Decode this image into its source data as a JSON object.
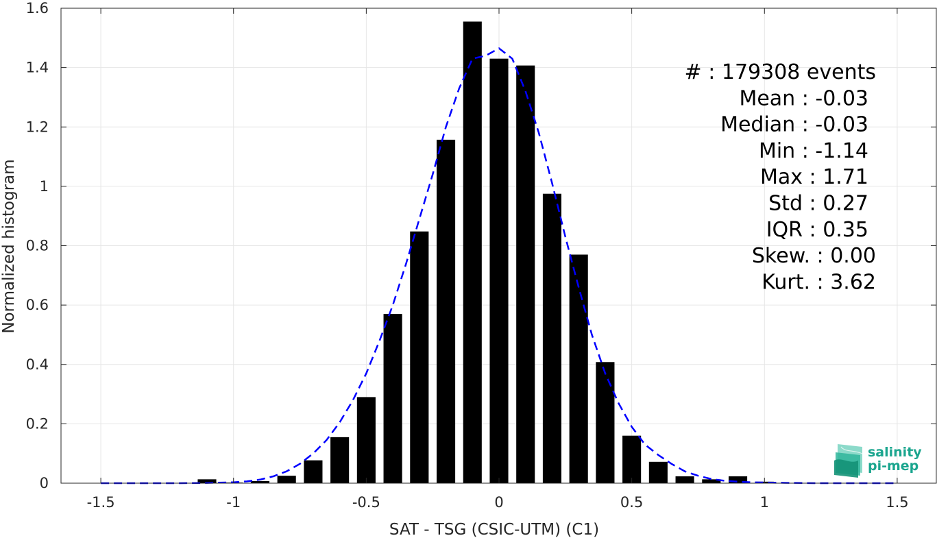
{
  "chart_data": {
    "type": "bar",
    "xlabel": "SAT - TSG (CSIC-UTM) (C1)",
    "ylabel": "Normalized histogram",
    "xlim": [
      -1.65,
      1.65
    ],
    "ylim": [
      0,
      1.6
    ],
    "xticks": [
      -1.5,
      -1,
      -0.5,
      0,
      0.5,
      1,
      1.5
    ],
    "xtick_labels": [
      "-1.5",
      "-1",
      "-0.5",
      "0",
      "0.5",
      "1",
      "1.5"
    ],
    "yticks": [
      0,
      0.2,
      0.4,
      0.6,
      0.8,
      1,
      1.2,
      1.4,
      1.6
    ],
    "ytick_labels": [
      "0",
      "0.2",
      "0.4",
      "0.6",
      "0.8",
      "1",
      "1.2",
      "1.4",
      "1.6"
    ],
    "grid": true,
    "bar_color": "#000000",
    "bar_width": 0.07,
    "bars": {
      "x": [
        -1.1,
        -1.0,
        -0.9,
        -0.8,
        -0.7,
        -0.6,
        -0.5,
        -0.4,
        -0.3,
        -0.2,
        -0.1,
        0.0,
        0.1,
        0.2,
        0.3,
        0.4,
        0.5,
        0.6,
        0.7,
        0.8,
        0.9,
        1.0
      ],
      "values": [
        0.013,
        0.002,
        0.007,
        0.025,
        0.077,
        0.155,
        0.29,
        0.57,
        0.848,
        1.157,
        1.555,
        1.43,
        1.407,
        0.975,
        0.77,
        0.408,
        0.16,
        0.072,
        0.023,
        0.013,
        0.023,
        0.005
      ]
    },
    "fit_curve": {
      "color": "#0000ff",
      "style": "dashed",
      "x": [
        -1.5,
        -1.4,
        -1.3,
        -1.2,
        -1.1,
        -1.0,
        -0.95,
        -0.9,
        -0.85,
        -0.8,
        -0.75,
        -0.7,
        -0.65,
        -0.6,
        -0.55,
        -0.5,
        -0.45,
        -0.4,
        -0.35,
        -0.3,
        -0.25,
        -0.2,
        -0.15,
        -0.1,
        -0.05,
        0.0,
        0.05,
        0.1,
        0.15,
        0.2,
        0.25,
        0.3,
        0.35,
        0.4,
        0.45,
        0.5,
        0.55,
        0.6,
        0.65,
        0.7,
        0.75,
        0.8,
        0.85,
        0.9,
        0.95,
        1.0,
        1.1,
        1.2,
        1.3,
        1.4,
        1.5
      ],
      "y": [
        0.0,
        0.0,
        0.0,
        0.0,
        0.001,
        0.003,
        0.006,
        0.012,
        0.023,
        0.04,
        0.065,
        0.1,
        0.145,
        0.205,
        0.28,
        0.37,
        0.48,
        0.6,
        0.74,
        0.89,
        1.04,
        1.2,
        1.33,
        1.43,
        1.44,
        1.465,
        1.43,
        1.32,
        1.18,
        1.01,
        0.83,
        0.66,
        0.5,
        0.37,
        0.27,
        0.19,
        0.13,
        0.095,
        0.065,
        0.04,
        0.025,
        0.014,
        0.008,
        0.005,
        0.003,
        0.002,
        0.001,
        0.0,
        0.0,
        0.0,
        0.0
      ]
    },
    "stats": [
      {
        "label": "#",
        "sep": " : ",
        "value": "179308 events"
      },
      {
        "label": "Mean",
        "sep": " : ",
        "value": "-0.03"
      },
      {
        "label": "Median",
        "sep": " : ",
        "value": "-0.03"
      },
      {
        "label": "Min",
        "sep": " : ",
        "value": "-1.14"
      },
      {
        "label": "Max",
        "sep": " : ",
        "value": "1.71"
      },
      {
        "label": "Std",
        "sep": " : ",
        "value": "0.27"
      },
      {
        "label": "IQR",
        "sep": " : ",
        "value": "0.35"
      },
      {
        "label": "Skew.",
        "sep": " : ",
        "value": "0.00"
      },
      {
        "label": "Kurt.",
        "sep": " : ",
        "value": "3.62"
      }
    ]
  },
  "logo": {
    "line1": "salinity",
    "line2": "pi-mep",
    "color": "#1aa58e"
  }
}
